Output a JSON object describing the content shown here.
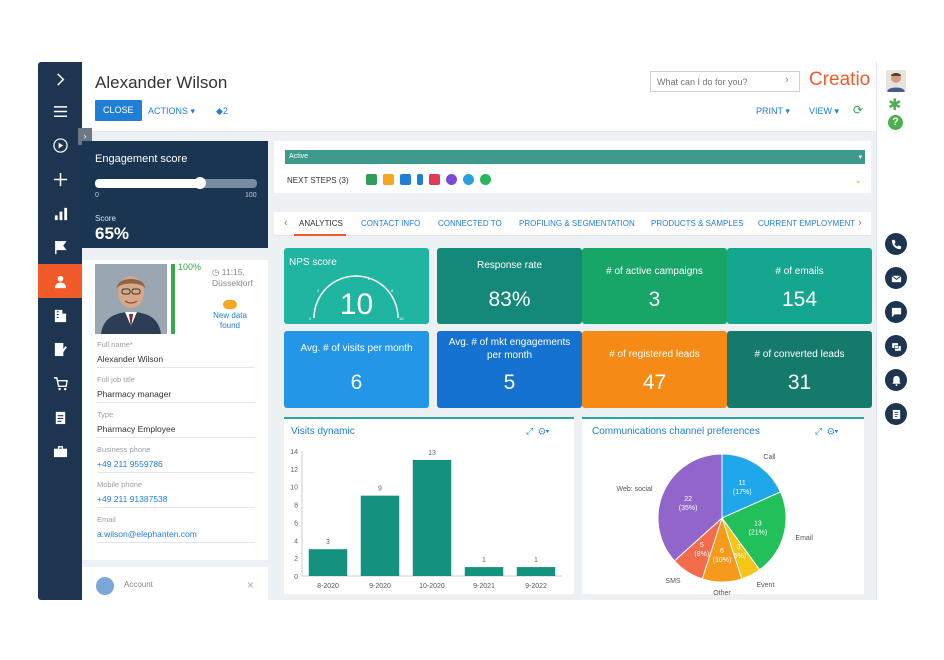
{
  "header": {
    "title": "Alexander Wilson",
    "close_label": "CLOSE",
    "actions_label": "ACTIONS ▾",
    "tag_count": "2",
    "search_placeholder": "What can I do for you?",
    "logo": "Creatio",
    "print_label": "PRINT ▾",
    "view_label": "VIEW ▾"
  },
  "engagement": {
    "title": "Engagement score",
    "min": "0",
    "max": "100",
    "score_label": "Score",
    "score_value": "65%",
    "level": 0.65
  },
  "profile": {
    "percent": "100%",
    "time": "11:15, Düsseldorf",
    "new_data": "New data found",
    "fields": [
      {
        "label": "Full name*",
        "value": "Alexander Wilson"
      },
      {
        "label": "Full job title",
        "value": "Pharmacy manager"
      },
      {
        "label": "Type",
        "value": "Pharmacy Employee"
      },
      {
        "label": "Business phone",
        "value": "+49 211 9559786"
      },
      {
        "label": "Mobile phone",
        "value": "+49 211 91387538"
      },
      {
        "label": "Email",
        "value": "a.wilson@elephanten.com"
      }
    ],
    "account_label": "Account"
  },
  "stage": {
    "label": "Active",
    "next_steps": "NEXT STEPS (3)"
  },
  "tabs": [
    "ANALYTICS",
    "CONTACT INFO",
    "CONNECTED TO",
    "PROFILING & SEGMENTATION",
    "PRODUCTS & SAMPLES",
    "CURRENT EMPLOYMENT"
  ],
  "tiles": [
    {
      "label": "NPS score",
      "value": "10",
      "color": "#1fb5a1"
    },
    {
      "label": "Response rate",
      "value": "83%",
      "color": "#14897a"
    },
    {
      "label": "# of active campaigns",
      "value": "3",
      "color": "#17a568"
    },
    {
      "label": "# of emails",
      "value": "154",
      "color": "#15a68f"
    },
    {
      "label": "Avg. # of visits per month",
      "value": "6",
      "color": "#2496e8"
    },
    {
      "label": "Avg. # of mkt engagements per month",
      "value": "5",
      "color": "#1672d0"
    },
    {
      "label": "# of registered leads",
      "value": "47",
      "color": "#f58a14"
    },
    {
      "label": "# of converted leads",
      "value": "31",
      "color": "#147a6c"
    }
  ],
  "nps_gauge": {
    "ticks": [
      "0",
      "2",
      "4",
      "6",
      "8",
      "10"
    ]
  },
  "chart_data": [
    {
      "type": "bar",
      "title": "Visits dynamic",
      "categories": [
        "8-2020",
        "9-2020",
        "10-2020",
        "9-2021",
        "9-2022"
      ],
      "values": [
        3,
        9,
        13,
        1,
        1
      ],
      "ylim": [
        0,
        14
      ],
      "yticks": [
        "0",
        "2",
        "4",
        "6",
        "8",
        "10",
        "12",
        "14"
      ],
      "color": "#15927f"
    },
    {
      "type": "pie",
      "title": "Communications channel preferences",
      "slices": [
        {
          "name": "Call",
          "value": 11,
          "pct": "(17%)",
          "color": "#1ea7ea"
        },
        {
          "name": "Email",
          "value": 13,
          "pct": "(21%)",
          "color": "#22c05a"
        },
        {
          "name": "Event",
          "value": 3,
          "pct": "(5%)",
          "color": "#f5c518"
        },
        {
          "name": "Other",
          "value": 6,
          "pct": "(10%)",
          "color": "#f59a1b"
        },
        {
          "name": "SMS",
          "value": 5,
          "pct": "(8%)",
          "color": "#f26b4a"
        },
        {
          "name": "Web: social",
          "value": 22,
          "pct": "(35%)",
          "color": "#9165c9"
        }
      ]
    }
  ]
}
